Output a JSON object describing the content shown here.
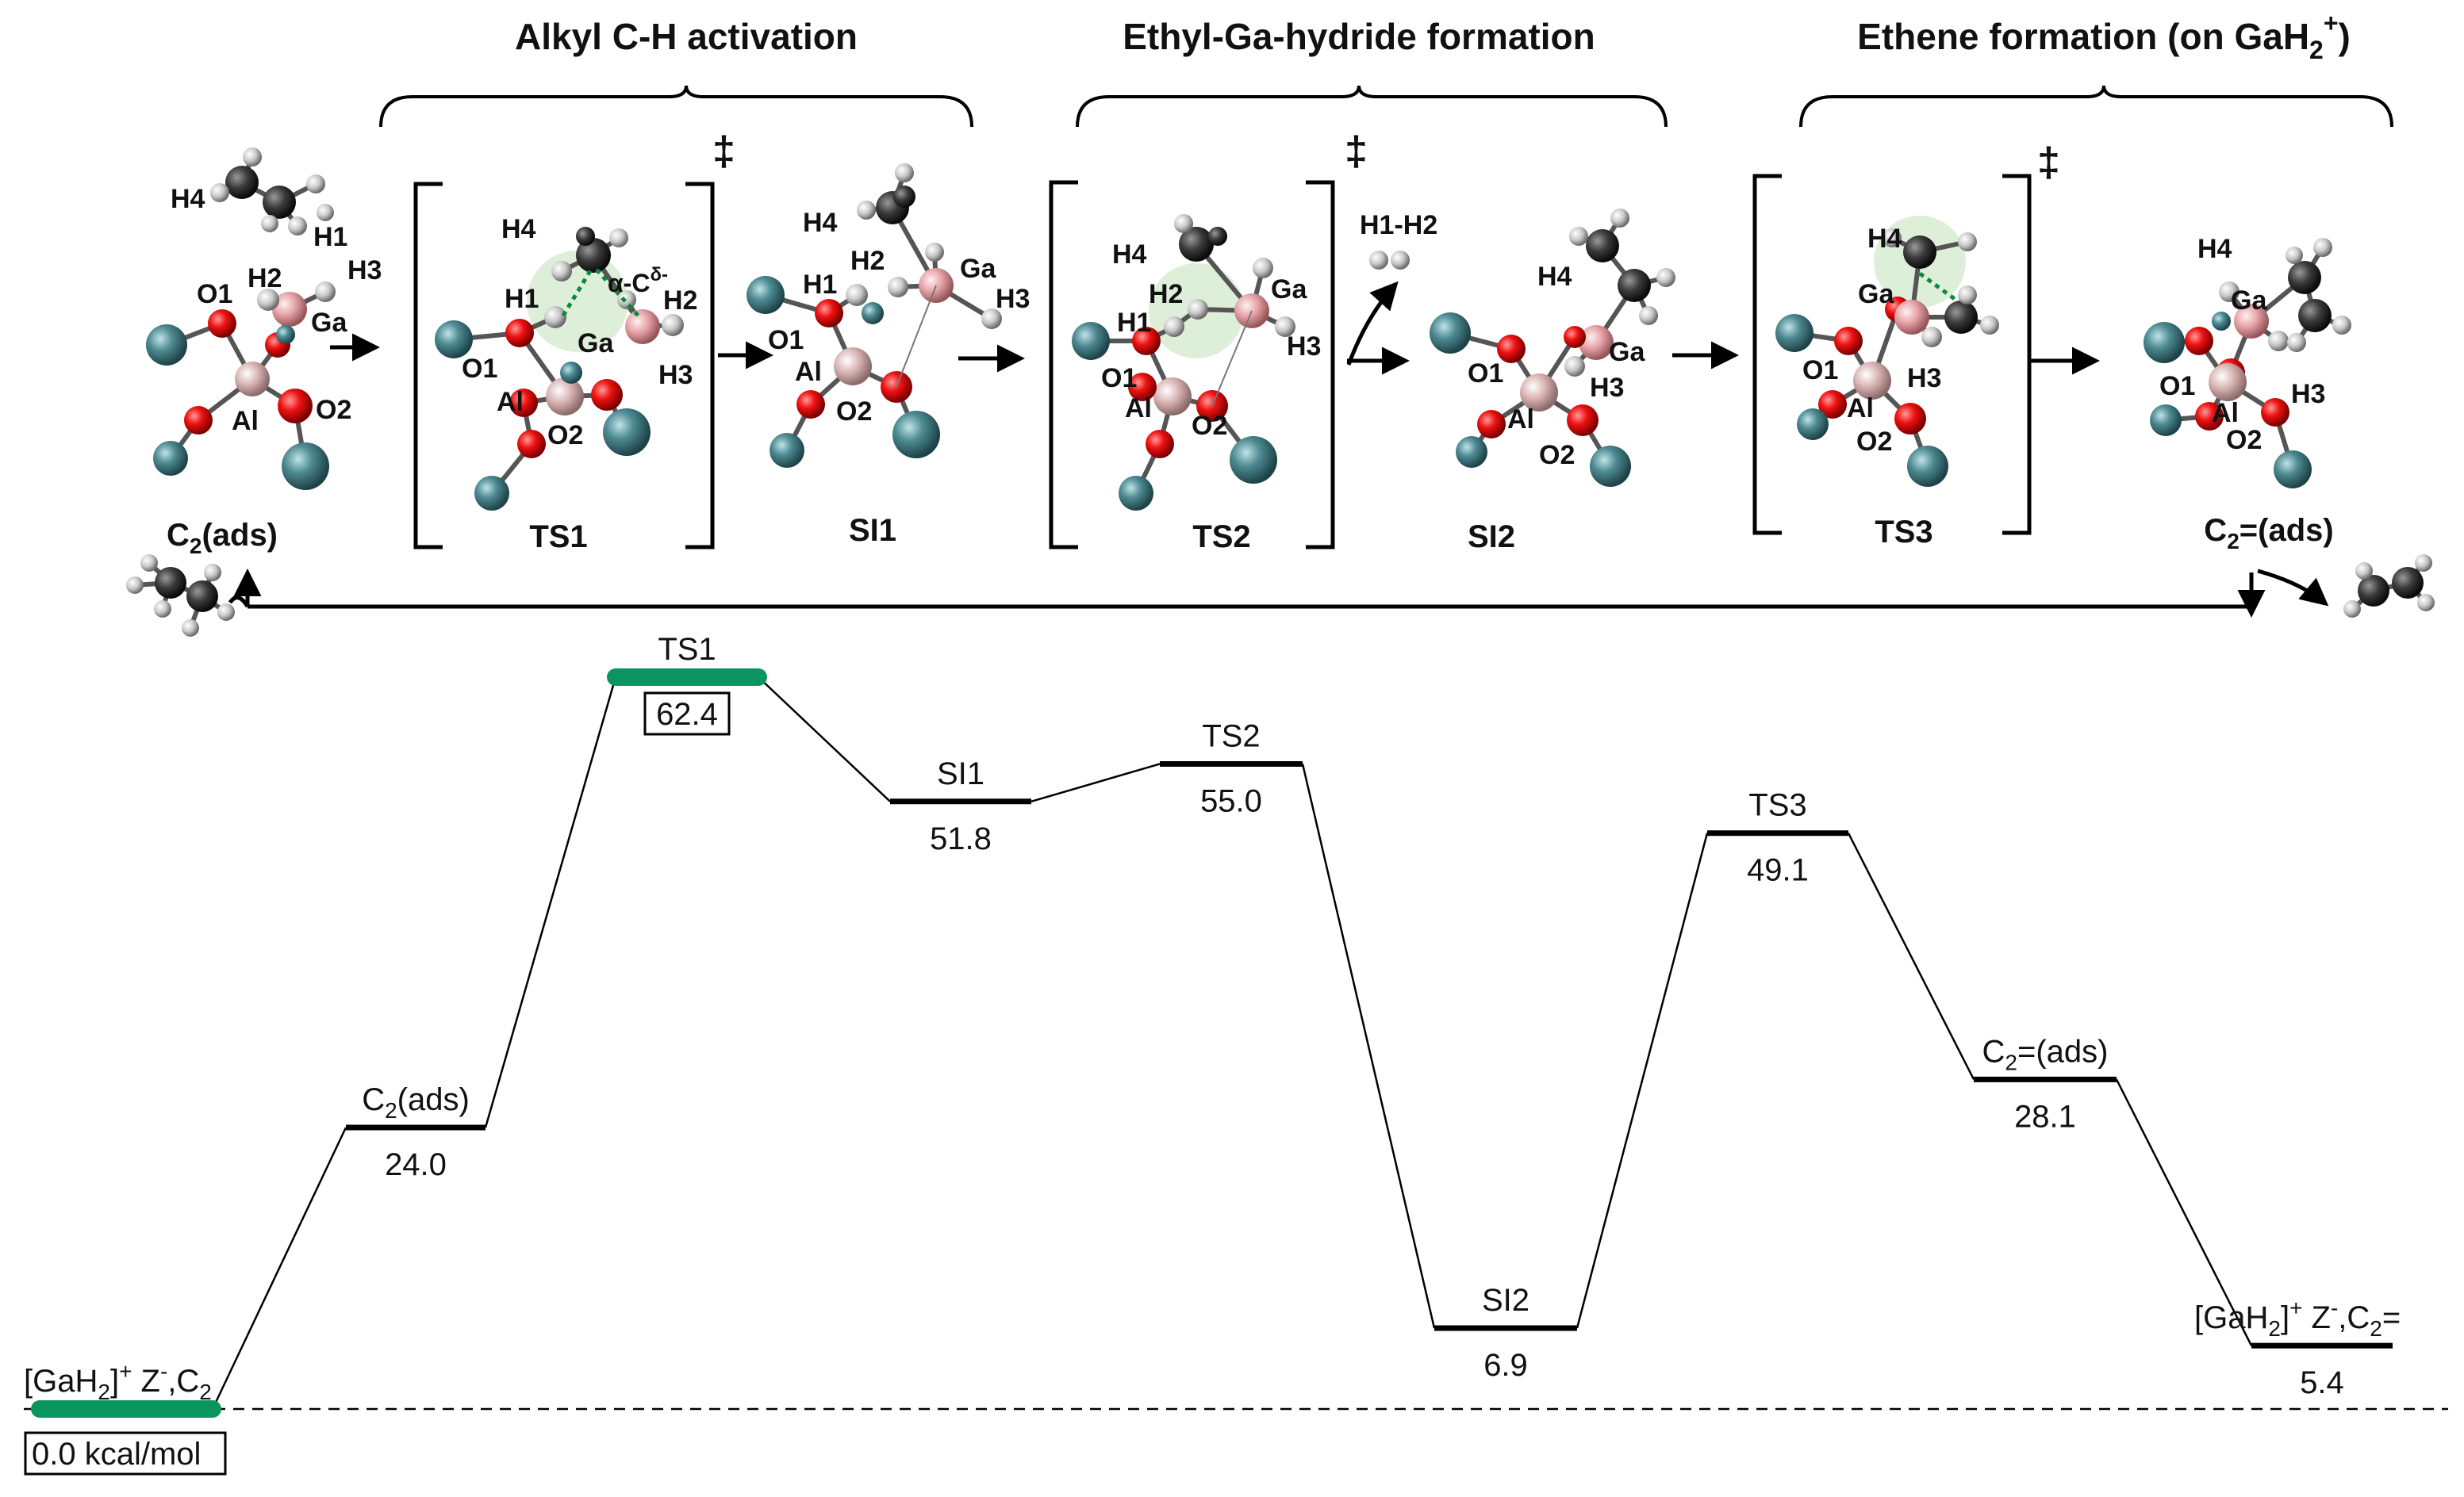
{
  "sections": [
    {
      "title": "Alkyl C-H activation"
    },
    {
      "title": "Ethyl-Ga-hydride formation"
    },
    {
      "title_main": "Ethene formation (on GaH",
      "title_sub": "2",
      "title_sup": "+",
      "title_close": ")"
    }
  ],
  "ts_symbol": "‡",
  "structures": [
    {
      "key": "c2ads",
      "main": "C",
      "sub": "2",
      "tail": "(ads)",
      "atoms": [
        "H4",
        "H1",
        "H3",
        "H2",
        "O1",
        "Ga",
        "Al",
        "O2"
      ]
    },
    {
      "key": "ts1",
      "name": "TS1",
      "atoms": [
        "H4",
        "H1",
        "H2",
        "O1",
        "Ga",
        "H3",
        "Al",
        "O2"
      ],
      "annotation": "α-Cδ-"
    },
    {
      "key": "si1",
      "name": "SI1",
      "atoms": [
        "H4",
        "H1",
        "H2",
        "Ga",
        "H3",
        "O1",
        "Al",
        "O2"
      ]
    },
    {
      "key": "ts2",
      "name": "TS2",
      "atoms": [
        "H4",
        "H2",
        "Ga",
        "H1",
        "H3",
        "O1",
        "Al",
        "O2"
      ]
    },
    {
      "key": "si2",
      "name": "SI2",
      "atoms": [
        "H4",
        "Ga",
        "O1",
        "H3",
        "Al",
        "O2"
      ]
    },
    {
      "key": "ts3",
      "name": "TS3",
      "atoms": [
        "H4",
        "Ga",
        "O1",
        "H3",
        "Al",
        "O2"
      ]
    },
    {
      "key": "c2eads",
      "main": "C",
      "sub": "2",
      "tail": "=(ads)",
      "atoms": [
        "H4",
        "Ga",
        "O1",
        "Al",
        "H3",
        "O2"
      ]
    }
  ],
  "h2_release": "H1-H2",
  "diagram": {
    "levels": [
      {
        "key": "start",
        "name_main": "[GaH",
        "name_sub": "2",
        "name_mid": "]",
        "name_sup": "+",
        "name_z": " Z",
        "name_zsup": "-",
        "name_tail": ",C",
        "name_tailsub": "2",
        "value": "0.0 kcal/mol",
        "energy": 0.0,
        "highlight": true,
        "boxed": true
      },
      {
        "key": "c2ads",
        "name_main": "C",
        "name_sub": "2",
        "name_tail": "(ads)",
        "value": "24.0",
        "energy": 24.0
      },
      {
        "key": "ts1",
        "name_main": "TS1",
        "value": "62.4",
        "energy": 62.4,
        "highlight": true,
        "boxed": true
      },
      {
        "key": "si1",
        "name_main": "SI1",
        "value": "51.8",
        "energy": 51.8
      },
      {
        "key": "ts2",
        "name_main": "TS2",
        "value": "55.0",
        "energy": 55.0
      },
      {
        "key": "si2",
        "name_main": "SI2",
        "value": "6.9",
        "energy": 6.9
      },
      {
        "key": "ts3",
        "name_main": "TS3",
        "value": "49.1",
        "energy": 49.1
      },
      {
        "key": "c2eads",
        "name_main": "C",
        "name_sub": "2",
        "name_tail": "=(ads)",
        "value": "28.1",
        "energy": 28.1
      },
      {
        "key": "end",
        "name_main": "[GaH",
        "name_sub": "2",
        "name_mid": "]",
        "name_sup": "+",
        "name_z": " Z",
        "name_zsup": "-",
        "name_tail": ",C",
        "name_tailsub": "2",
        "name_end": "=",
        "value": "5.4",
        "energy": 5.4
      }
    ]
  },
  "colors": {
    "highlight": "#0a9460",
    "line": "#000000",
    "silicon": "#4e8a92",
    "oxygen": "#ee1111",
    "aluminum": "#d8b2b2",
    "gallium": "#e5a2a6",
    "carbon": "#3a3a3a",
    "hydrogen": "#c8c8c8",
    "halo": "#d6ebcf",
    "annotation": "#0a8a3a"
  }
}
